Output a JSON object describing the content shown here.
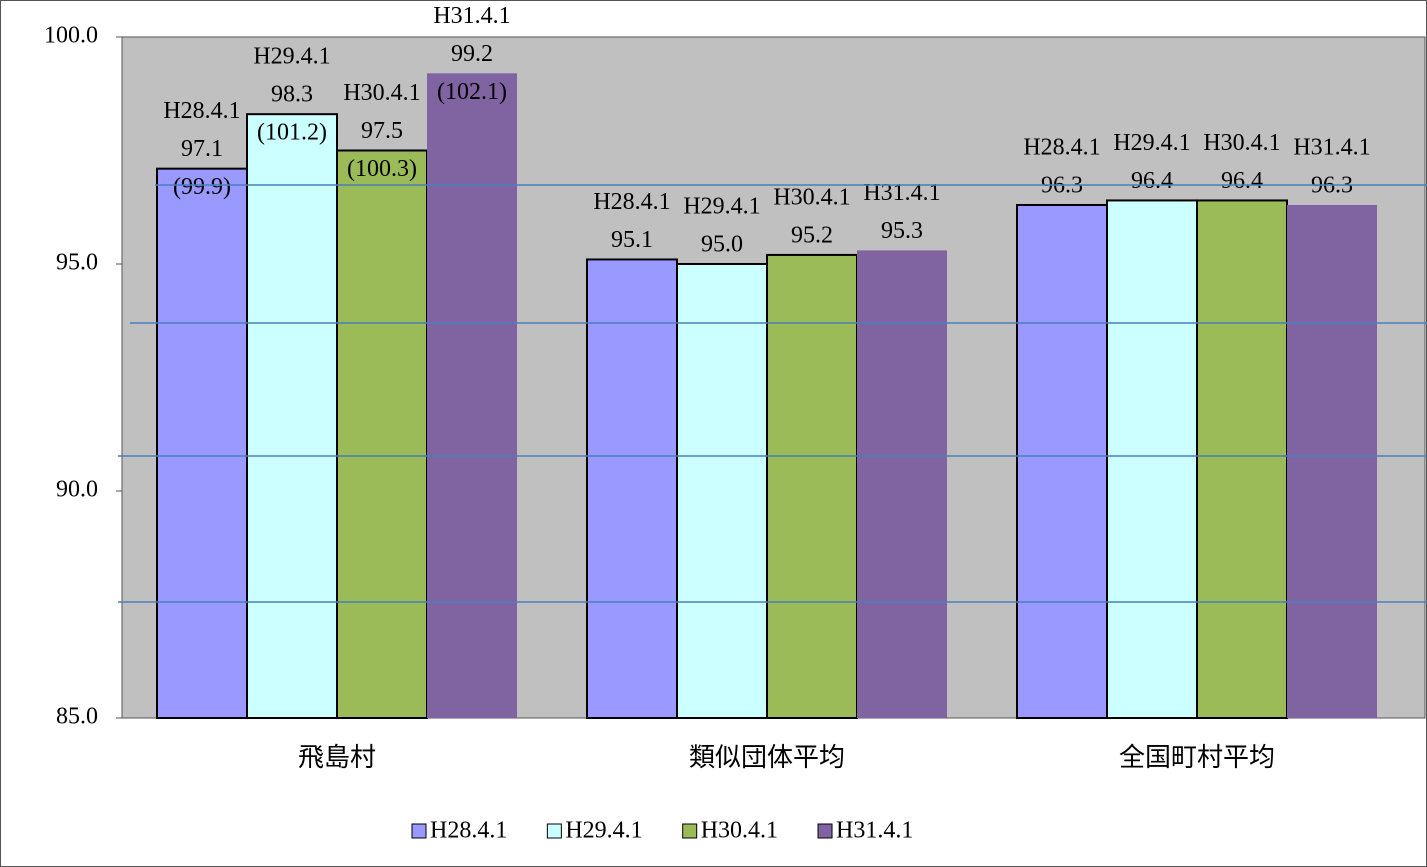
{
  "chart_data": {
    "type": "bar",
    "categories": [
      "飛島村",
      "類似団体平均",
      "全国町村平均"
    ],
    "series": [
      {
        "name": "H28.4.1",
        "color": "#9999ff",
        "values": [
          97.1,
          95.1,
          96.3
        ],
        "value_labels": [
          "97.1",
          "95.1",
          "96.3"
        ],
        "sub_labels": [
          "(99.9)",
          null,
          null
        ]
      },
      {
        "name": "H29.4.1",
        "color": "#ccffff",
        "values": [
          98.3,
          95.0,
          96.4
        ],
        "value_labels": [
          "98.3",
          "95.0",
          "96.4"
        ],
        "sub_labels": [
          "(101.2)",
          null,
          null
        ]
      },
      {
        "name": "H30.4.1",
        "color": "#9bbb59",
        "values": [
          97.5,
          95.2,
          96.4
        ],
        "value_labels": [
          "97.5",
          "95.2",
          "96.4"
        ],
        "sub_labels": [
          "(100.3)",
          null,
          null
        ]
      },
      {
        "name": "H31.4.1",
        "color": "#8064a2",
        "values": [
          99.2,
          95.3,
          96.3
        ],
        "value_labels": [
          "99.2",
          "95.3",
          "96.3"
        ],
        "sub_labels": [
          "(102.1)",
          null,
          null
        ]
      }
    ],
    "ylim": [
      85,
      100
    ],
    "yticks": [
      {
        "value": 85,
        "label": "85.0"
      },
      {
        "value": 90,
        "label": "90.0"
      },
      {
        "value": 95,
        "label": "95.0"
      },
      {
        "value": 100,
        "label": "100.0"
      }
    ],
    "legend": "bottom"
  }
}
